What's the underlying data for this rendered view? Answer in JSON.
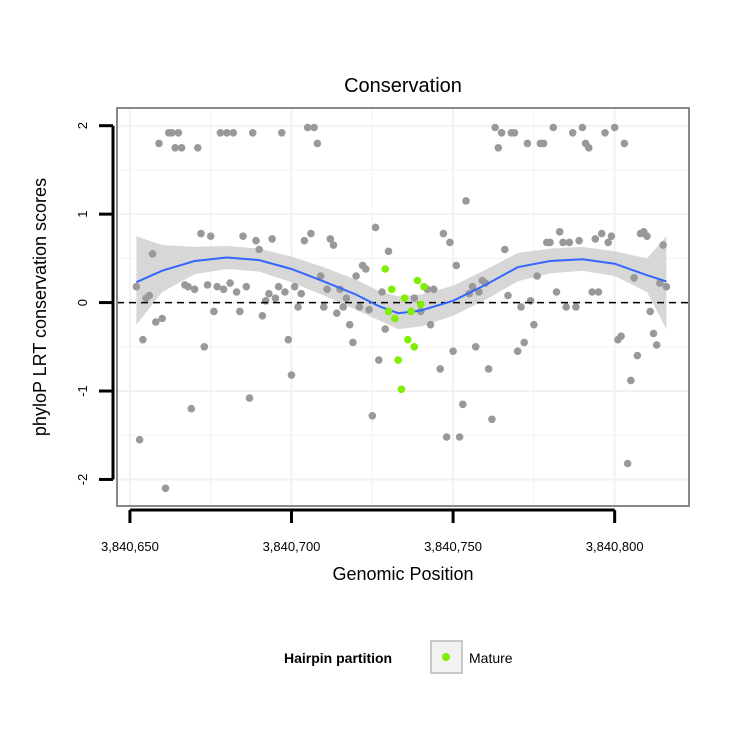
{
  "chart_data": {
    "type": "scatter",
    "title": "Conservation",
    "xlabel": "Genomic Position",
    "ylabel": "phyloP LRT conservation scores",
    "xlim": [
      3840646,
      3840823
    ],
    "ylim": [
      -2.3,
      2.2
    ],
    "x_ticks": [
      3840650,
      3840700,
      3840750,
      3840800
    ],
    "x_tick_labels": [
      "3,840,650",
      "3,840,700",
      "3,840,750",
      "3,840,800"
    ],
    "y_ticks": [
      -2,
      -1,
      0,
      1,
      2
    ],
    "y_tick_labels": [
      "-2",
      "-1",
      "0",
      "1",
      "2"
    ],
    "reference_line": {
      "y": 0,
      "style": "dashed"
    },
    "colors": {
      "other": "#999999",
      "mature": "#80ee00",
      "smooth": "#3366ff",
      "band": "#d0d0d0",
      "panel_border": "#888888",
      "grid": "#f2f2f2"
    },
    "legend": {
      "title": "Hairpin partition",
      "entries": [
        {
          "label": "Mature",
          "color": "#80ee00"
        }
      ],
      "position": "bottom"
    },
    "series": [
      {
        "name": "Other",
        "points": [
          [
            3840652,
            0.18
          ],
          [
            3840653,
            -1.55
          ],
          [
            3840654,
            -0.42
          ],
          [
            3840655,
            0.05
          ],
          [
            3840656,
            0.08
          ],
          [
            3840657,
            0.55
          ],
          [
            3840658,
            -0.22
          ],
          [
            3840659,
            1.8
          ],
          [
            3840660,
            -0.18
          ],
          [
            3840661,
            -2.1
          ],
          [
            3840662,
            1.92
          ],
          [
            3840663,
            1.92
          ],
          [
            3840664,
            1.75
          ],
          [
            3840665,
            1.92
          ],
          [
            3840666,
            1.75
          ],
          [
            3840667,
            0.2
          ],
          [
            3840668,
            0.18
          ],
          [
            3840669,
            -1.2
          ],
          [
            3840670,
            0.15
          ],
          [
            3840671,
            1.75
          ],
          [
            3840672,
            0.78
          ],
          [
            3840673,
            -0.5
          ],
          [
            3840674,
            0.2
          ],
          [
            3840675,
            0.75
          ],
          [
            3840676,
            -0.1
          ],
          [
            3840677,
            0.18
          ],
          [
            3840678,
            1.92
          ],
          [
            3840679,
            0.15
          ],
          [
            3840680,
            1.92
          ],
          [
            3840681,
            0.22
          ],
          [
            3840682,
            1.92
          ],
          [
            3840683,
            0.12
          ],
          [
            3840684,
            -0.1
          ],
          [
            3840685,
            0.75
          ],
          [
            3840686,
            0.18
          ],
          [
            3840687,
            -1.08
          ],
          [
            3840688,
            1.92
          ],
          [
            3840689,
            0.7
          ],
          [
            3840690,
            0.6
          ],
          [
            3840691,
            -0.15
          ],
          [
            3840692,
            0.02
          ],
          [
            3840693,
            0.1
          ],
          [
            3840694,
            0.72
          ],
          [
            3840695,
            0.05
          ],
          [
            3840696,
            0.18
          ],
          [
            3840697,
            1.92
          ],
          [
            3840698,
            0.12
          ],
          [
            3840699,
            -0.42
          ],
          [
            3840700,
            -0.82
          ],
          [
            3840701,
            0.18
          ],
          [
            3840702,
            -0.05
          ],
          [
            3840703,
            0.1
          ],
          [
            3840704,
            0.7
          ],
          [
            3840705,
            1.98
          ],
          [
            3840706,
            0.78
          ],
          [
            3840707,
            1.98
          ],
          [
            3840708,
            1.8
          ],
          [
            3840709,
            0.3
          ],
          [
            3840710,
            -0.05
          ],
          [
            3840711,
            0.15
          ],
          [
            3840712,
            0.72
          ],
          [
            3840713,
            0.65
          ],
          [
            3840714,
            -0.12
          ],
          [
            3840715,
            0.15
          ],
          [
            3840716,
            -0.05
          ],
          [
            3840717,
            0.05
          ],
          [
            3840718,
            -0.25
          ],
          [
            3840719,
            -0.45
          ],
          [
            3840720,
            0.3
          ],
          [
            3840721,
            -0.05
          ],
          [
            3840722,
            0.42
          ],
          [
            3840723,
            0.38
          ],
          [
            3840724,
            -0.08
          ],
          [
            3840725,
            -1.28
          ],
          [
            3840726,
            0.85
          ],
          [
            3840727,
            -0.65
          ],
          [
            3840728,
            0.12
          ],
          [
            3840729,
            -0.3
          ],
          [
            3840730,
            0.58
          ],
          [
            3840738,
            0.05
          ],
          [
            3840740,
            -0.1
          ],
          [
            3840742,
            0.15
          ],
          [
            3840743,
            -0.25
          ],
          [
            3840744,
            0.15
          ],
          [
            3840746,
            -0.75
          ],
          [
            3840747,
            0.78
          ],
          [
            3840748,
            -1.52
          ],
          [
            3840749,
            0.68
          ],
          [
            3840750,
            -0.55
          ],
          [
            3840751,
            0.42
          ],
          [
            3840752,
            -1.52
          ],
          [
            3840753,
            -1.15
          ],
          [
            3840754,
            1.15
          ],
          [
            3840755,
            0.1
          ],
          [
            3840756,
            0.18
          ],
          [
            3840757,
            -0.5
          ],
          [
            3840758,
            0.12
          ],
          [
            3840759,
            0.25
          ],
          [
            3840760,
            0.22
          ],
          [
            3840761,
            -0.75
          ],
          [
            3840762,
            -1.32
          ],
          [
            3840763,
            1.98
          ],
          [
            3840764,
            1.75
          ],
          [
            3840765,
            1.92
          ],
          [
            3840766,
            0.6
          ],
          [
            3840767,
            0.08
          ],
          [
            3840768,
            1.92
          ],
          [
            3840769,
            1.92
          ],
          [
            3840770,
            -0.55
          ],
          [
            3840771,
            -0.05
          ],
          [
            3840772,
            -0.45
          ],
          [
            3840773,
            1.8
          ],
          [
            3840774,
            0.02
          ],
          [
            3840775,
            -0.25
          ],
          [
            3840776,
            0.3
          ],
          [
            3840777,
            1.8
          ],
          [
            3840778,
            1.8
          ],
          [
            3840779,
            0.68
          ],
          [
            3840780,
            0.68
          ],
          [
            3840781,
            1.98
          ],
          [
            3840782,
            0.12
          ],
          [
            3840783,
            0.8
          ],
          [
            3840784,
            0.68
          ],
          [
            3840785,
            -0.05
          ],
          [
            3840786,
            0.68
          ],
          [
            3840787,
            1.92
          ],
          [
            3840788,
            -0.05
          ],
          [
            3840789,
            0.7
          ],
          [
            3840790,
            1.98
          ],
          [
            3840791,
            1.8
          ],
          [
            3840792,
            1.75
          ],
          [
            3840793,
            0.12
          ],
          [
            3840794,
            0.72
          ],
          [
            3840795,
            0.12
          ],
          [
            3840796,
            0.78
          ],
          [
            3840797,
            1.92
          ],
          [
            3840798,
            0.68
          ],
          [
            3840799,
            0.75
          ],
          [
            3840800,
            1.98
          ],
          [
            3840801,
            -0.42
          ],
          [
            3840802,
            -0.38
          ],
          [
            3840803,
            1.8
          ],
          [
            3840804,
            -1.82
          ],
          [
            3840805,
            -0.88
          ],
          [
            3840806,
            0.28
          ],
          [
            3840807,
            -0.6
          ],
          [
            3840808,
            0.78
          ],
          [
            3840809,
            0.8
          ],
          [
            3840810,
            0.75
          ],
          [
            3840811,
            -0.1
          ],
          [
            3840812,
            -0.35
          ],
          [
            3840813,
            -0.48
          ],
          [
            3840814,
            0.22
          ],
          [
            3840815,
            0.65
          ],
          [
            3840816,
            0.18
          ]
        ]
      },
      {
        "name": "Mature",
        "points": [
          [
            3840729,
            0.38
          ],
          [
            3840730,
            -0.1
          ],
          [
            3840731,
            0.15
          ],
          [
            3840732,
            -0.18
          ],
          [
            3840733,
            -0.65
          ],
          [
            3840734,
            -0.98
          ],
          [
            3840735,
            0.05
          ],
          [
            3840736,
            -0.42
          ],
          [
            3840737,
            -0.1
          ],
          [
            3840738,
            -0.5
          ],
          [
            3840739,
            0.25
          ],
          [
            3840740,
            -0.02
          ],
          [
            3840741,
            0.18
          ]
        ]
      }
    ],
    "smooth": {
      "x": [
        3840652,
        3840660,
        3840670,
        3840680,
        3840690,
        3840700,
        3840710,
        3840720,
        3840727,
        3840733,
        3840740,
        3840750,
        3840760,
        3840770,
        3840780,
        3840790,
        3840800,
        3840810,
        3840816
      ],
      "y": [
        0.23,
        0.36,
        0.47,
        0.51,
        0.48,
        0.38,
        0.24,
        0.09,
        -0.04,
        -0.12,
        -0.09,
        0.02,
        0.2,
        0.4,
        0.47,
        0.49,
        0.44,
        0.31,
        0.24
      ],
      "lo": [
        -0.25,
        0.12,
        0.32,
        0.38,
        0.35,
        0.23,
        0.08,
        -0.08,
        -0.2,
        -0.3,
        -0.27,
        -0.15,
        0.03,
        0.24,
        0.33,
        0.36,
        0.3,
        0.12,
        -0.3
      ],
      "hi": [
        0.75,
        0.65,
        0.63,
        0.64,
        0.61,
        0.52,
        0.4,
        0.26,
        0.13,
        0.07,
        0.09,
        0.19,
        0.37,
        0.56,
        0.61,
        0.63,
        0.58,
        0.5,
        0.75
      ]
    }
  }
}
